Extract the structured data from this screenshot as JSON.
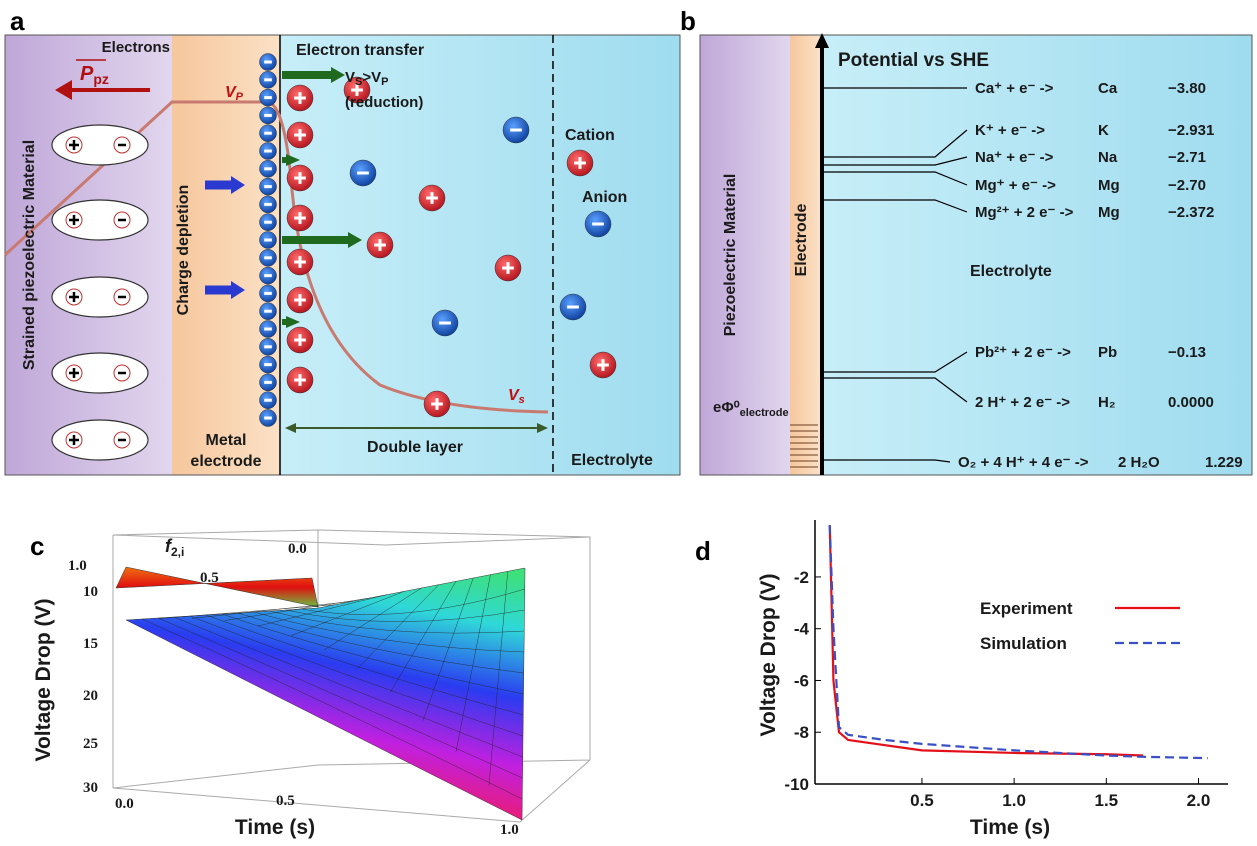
{
  "panel_a": {
    "letter": "a",
    "polarization": {
      "symbol": "P",
      "sub": "pz"
    },
    "electrons": "Electrons",
    "electron_transfer": "Electron transfer",
    "condition": {
      "a": "V",
      "a_sub": "S",
      "op": ">",
      "b": "V",
      "b_sub": "P"
    },
    "reduction": "(reduction)",
    "vp": {
      "symbol": "V",
      "sub": "P"
    },
    "vs": {
      "symbol": "V",
      "sub": "s"
    },
    "cation": "Cation",
    "anion": "Anion",
    "piezo": "Strained piezoelectric Material",
    "depletion": "Charge depletion",
    "metal": [
      "Metal",
      "electrode"
    ],
    "double_layer": "Double layer",
    "electrolyte": "Electrolyte"
  },
  "panel_b": {
    "letter": "b",
    "title": "Potential vs SHE",
    "piezo": "Piezoelectric Material",
    "electrode": "Electrode",
    "electrolyte": "Electrolyte",
    "work_function": {
      "symbol": "eΦ⁰",
      "sub": "electrode"
    },
    "reactions": [
      {
        "left": "Ca⁺ + e⁻ ->",
        "product": "Ca",
        "potential": "−3.80"
      },
      {
        "left": "K⁺ + e⁻ ->",
        "product": "K",
        "potential": "−2.931"
      },
      {
        "left": "Na⁺ + e⁻ ->",
        "product": "Na",
        "potential": "−2.71"
      },
      {
        "left": "Mg⁺ + e⁻ ->",
        "product": "Mg",
        "potential": "−2.70"
      },
      {
        "left": "Mg²⁺ + 2 e⁻ ->",
        "product": "Mg",
        "potential": "−2.372"
      },
      {
        "left": "Pb²⁺ + 2 e⁻ ->",
        "product": "Pb",
        "potential": "−0.13"
      },
      {
        "left": "2 H⁺ + 2 e⁻ ->",
        "product": "H₂",
        "potential": "0.0000"
      },
      {
        "left": "O₂ + 4 H⁺ + 4 e⁻ ->",
        "product": "2 H₂O",
        "potential": "1.229"
      }
    ]
  },
  "panel_c": {
    "letter": "c",
    "f_axis": {
      "symbol": "f",
      "sub": "2,i"
    },
    "f_ticks": [
      "1.0",
      "0.5",
      "0.0"
    ],
    "y_title": "Voltage Drop (V)",
    "y_ticks": [
      "10",
      "15",
      "20",
      "25",
      "30"
    ],
    "x_title": "Time (s)",
    "x_ticks": [
      "0.0",
      "0.5",
      "1.0"
    ]
  },
  "chart_data": {
    "type": "line",
    "letter": "d",
    "x_label": "Time (s)",
    "y_label": "Voltage Drop (V)",
    "x": [
      0,
      0.02,
      0.05,
      0.1,
      0.3,
      0.5,
      1.0,
      1.5,
      1.7,
      2.05
    ],
    "series": [
      {
        "name": "Experiment",
        "color": "#e3101a",
        "dash": false,
        "values": [
          0,
          -6,
          -8,
          -8.3,
          -8.5,
          -8.7,
          -8.8,
          -8.85,
          -8.9,
          null
        ]
      },
      {
        "name": "Simulation",
        "color": "#3a4fc4",
        "dash": true,
        "values": [
          0,
          -4,
          -7.8,
          -8.1,
          -8.3,
          -8.45,
          -8.7,
          -8.9,
          -8.95,
          -9.0
        ]
      }
    ],
    "xlim": [
      -0.08,
      2.16
    ],
    "ylim": [
      -10,
      0.2
    ],
    "xticks": [
      0.5,
      {
        "value": 1,
        "label": "1.0"
      },
      1.5,
      {
        "value": 2,
        "label": "2.0"
      }
    ],
    "yticks": [
      -2,
      -4,
      -6,
      -8,
      -10
    ]
  }
}
